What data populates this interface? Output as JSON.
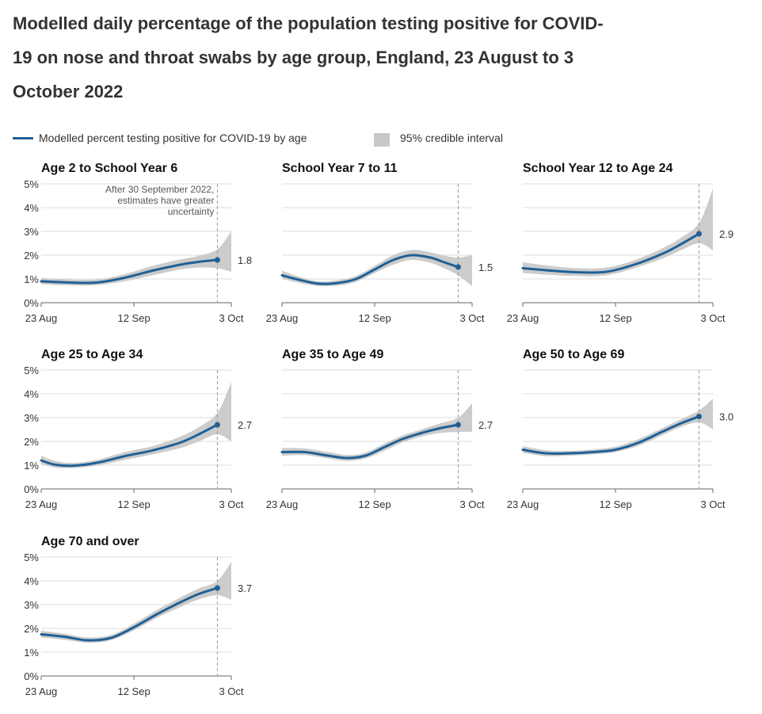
{
  "title": "Modelled daily percentage of the population testing positive for COVID-19 on nose and throat swabs by age group, England, 23 August to 3 October 2022",
  "legend": {
    "line_label": "Modelled percent testing positive for COVID-19 by age",
    "band_label": "95% credible interval"
  },
  "colors": {
    "line": "#206095",
    "band": "#cccccc",
    "grid": "#dddddd",
    "axis": "#666666",
    "marker_line": "#999999"
  },
  "annotation": [
    "After 30 September 2022,",
    "estimates have greater",
    "uncertainty"
  ],
  "chart_data": {
    "type": "line",
    "y_ticks": [
      "5%",
      "4%",
      "3%",
      "2%",
      "1%",
      "0%"
    ],
    "ylim": [
      0,
      5
    ],
    "xlim": [
      0,
      41
    ],
    "x_ticks": [
      {
        "label": "23 Aug",
        "day": 0
      },
      {
        "label": "12 Sep",
        "day": 20
      },
      {
        "label": "3 Oct",
        "day": 41
      }
    ],
    "uncertainty_marker_day": 38,
    "panels": [
      {
        "title": "Age 2 to School Year 6",
        "end_label": "1.8",
        "show_y_labels": true,
        "days": [
          0,
          6,
          12,
          18,
          24,
          30,
          34,
          38
        ],
        "values": [
          0.9,
          0.85,
          0.85,
          1.05,
          1.35,
          1.6,
          1.72,
          1.8
        ],
        "lower": [
          0.78,
          0.73,
          0.74,
          0.9,
          1.15,
          1.4,
          1.48,
          1.45
        ],
        "upper": [
          1.04,
          0.98,
          0.98,
          1.2,
          1.55,
          1.82,
          1.98,
          2.25
        ],
        "upper_end": 3.0,
        "lower_end": 1.3
      },
      {
        "title": "School Year 7 to 11",
        "end_label": "1.5",
        "show_y_labels": false,
        "days": [
          0,
          4,
          8,
          12,
          16,
          20,
          24,
          28,
          32,
          35,
          38
        ],
        "values": [
          1.15,
          0.95,
          0.8,
          0.83,
          1.0,
          1.4,
          1.8,
          2.0,
          1.9,
          1.7,
          1.5
        ],
        "lower": [
          1.0,
          0.82,
          0.7,
          0.72,
          0.88,
          1.25,
          1.6,
          1.8,
          1.68,
          1.45,
          1.15
        ],
        "upper": [
          1.35,
          1.08,
          0.9,
          0.95,
          1.13,
          1.55,
          2.0,
          2.22,
          2.12,
          1.98,
          1.9
        ],
        "upper_end": 2.0,
        "lower_end": 0.7
      },
      {
        "title": "School Year 12 to Age 24",
        "end_label": "2.9",
        "show_y_labels": false,
        "days": [
          0,
          6,
          12,
          18,
          24,
          30,
          34,
          38
        ],
        "values": [
          1.45,
          1.35,
          1.28,
          1.3,
          1.6,
          2.05,
          2.45,
          2.9
        ],
        "lower": [
          1.25,
          1.17,
          1.12,
          1.15,
          1.45,
          1.85,
          2.2,
          2.5
        ],
        "upper": [
          1.7,
          1.55,
          1.45,
          1.48,
          1.78,
          2.28,
          2.72,
          3.35
        ],
        "upper_end": 4.8,
        "lower_end": 2.2
      },
      {
        "title": "Age 25 to Age 34",
        "end_label": "2.7",
        "show_y_labels": true,
        "days": [
          0,
          3,
          7,
          12,
          18,
          24,
          30,
          34,
          38
        ],
        "values": [
          1.2,
          1.02,
          0.98,
          1.1,
          1.38,
          1.62,
          1.95,
          2.3,
          2.7
        ],
        "lower": [
          1.05,
          0.9,
          0.88,
          0.98,
          1.22,
          1.45,
          1.72,
          2.0,
          2.3
        ],
        "upper": [
          1.4,
          1.18,
          1.1,
          1.22,
          1.55,
          1.8,
          2.2,
          2.6,
          3.2
        ],
        "upper_end": 4.5,
        "lower_end": 2.0
      },
      {
        "title": "Age 35 to Age 49",
        "end_label": "2.7",
        "show_y_labels": false,
        "days": [
          0,
          5,
          10,
          14,
          18,
          22,
          26,
          30,
          34,
          38
        ],
        "values": [
          1.55,
          1.55,
          1.4,
          1.3,
          1.4,
          1.75,
          2.1,
          2.35,
          2.55,
          2.7
        ],
        "lower": [
          1.4,
          1.42,
          1.28,
          1.18,
          1.28,
          1.6,
          1.95,
          2.2,
          2.35,
          2.4
        ],
        "upper": [
          1.72,
          1.7,
          1.55,
          1.43,
          1.53,
          1.9,
          2.25,
          2.5,
          2.75,
          3.0
        ],
        "upper_end": 3.6,
        "lower_end": 2.4
      },
      {
        "title": "Age 50 to Age 69",
        "end_label": "3.0",
        "show_y_labels": false,
        "days": [
          0,
          5,
          10,
          15,
          20,
          25,
          30,
          34,
          38
        ],
        "values": [
          1.65,
          1.5,
          1.5,
          1.55,
          1.65,
          1.95,
          2.4,
          2.75,
          3.05
        ],
        "lower": [
          1.52,
          1.38,
          1.4,
          1.45,
          1.55,
          1.82,
          2.25,
          2.6,
          2.8
        ],
        "upper": [
          1.8,
          1.63,
          1.6,
          1.66,
          1.78,
          2.1,
          2.55,
          2.92,
          3.3
        ],
        "upper_end": 3.8,
        "lower_end": 2.5
      },
      {
        "title": "Age 70 and over",
        "end_label": "3.7",
        "show_y_labels": true,
        "days": [
          0,
          5,
          10,
          15,
          20,
          25,
          30,
          34,
          38
        ],
        "values": [
          1.75,
          1.65,
          1.5,
          1.6,
          2.05,
          2.6,
          3.1,
          3.45,
          3.7
        ],
        "lower": [
          1.62,
          1.52,
          1.4,
          1.5,
          1.92,
          2.45,
          2.9,
          3.22,
          3.4
        ],
        "upper": [
          1.9,
          1.78,
          1.62,
          1.72,
          2.2,
          2.78,
          3.3,
          3.68,
          4.0
        ],
        "upper_end": 4.8,
        "lower_end": 3.2
      }
    ]
  }
}
